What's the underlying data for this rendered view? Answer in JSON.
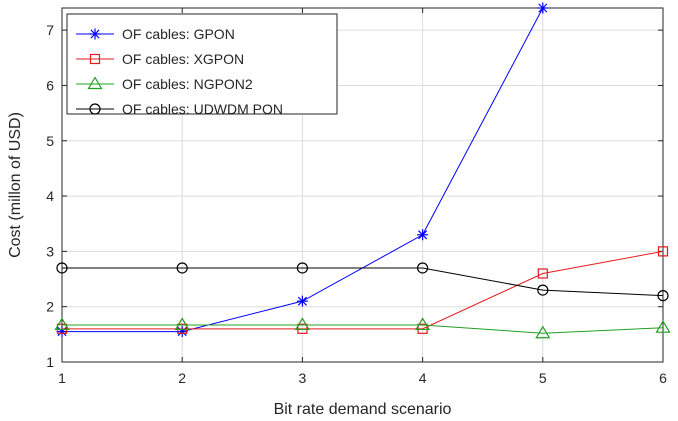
{
  "chart_data": {
    "type": "line",
    "title": "",
    "xlabel": "Bit rate demand scenario",
    "ylabel": "Cost (millon of USD)",
    "xlim": [
      1,
      6
    ],
    "ylim": [
      1,
      7.4
    ],
    "x": [
      1,
      2,
      3,
      4,
      5,
      6
    ],
    "xticks": [
      "1",
      "2",
      "3",
      "4",
      "5",
      "6"
    ],
    "yticks": [
      "1",
      "2",
      "3",
      "4",
      "5",
      "6",
      "7"
    ],
    "grid": true,
    "legend_position": "top-left",
    "series": [
      {
        "name": "OF cables: GPON",
        "color": "#0000ff",
        "marker": "asterisk",
        "values": [
          1.55,
          1.55,
          2.1,
          3.3,
          7.4,
          null
        ]
      },
      {
        "name": "OF cables: XGPON",
        "color": "#e41a1c",
        "marker": "square",
        "values": [
          1.6,
          1.6,
          1.6,
          1.6,
          2.6,
          3.0
        ]
      },
      {
        "name": "OF cables: NGPON2",
        "color": "#22a022",
        "marker": "triangle",
        "values": [
          1.67,
          1.67,
          1.67,
          1.67,
          1.52,
          1.62
        ]
      },
      {
        "name": "OF cables: UDWDM PON",
        "color": "#000000",
        "marker": "circle",
        "values": [
          2.7,
          2.7,
          2.7,
          2.7,
          2.3,
          2.2
        ]
      }
    ]
  }
}
